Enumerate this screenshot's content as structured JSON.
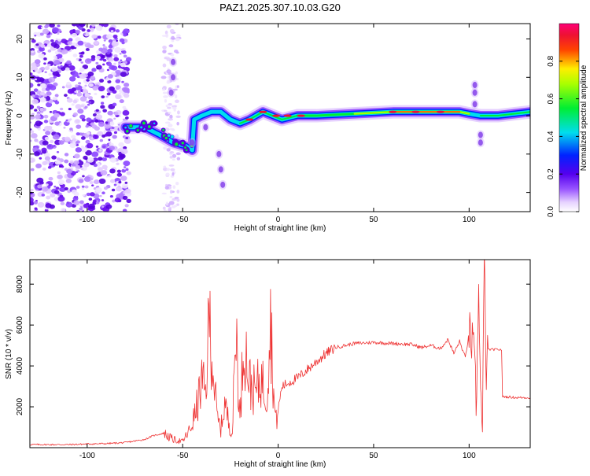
{
  "title": "PAZ1.2025.307.10.03.G20",
  "colors": {
    "snr_line": "#ee3333",
    "axis": "#000000",
    "background": "#ffffff"
  },
  "chart_data": [
    {
      "type": "heatmap",
      "title": "PAZ1.2025.307.10.03.G20",
      "xlabel": "Height of straight line (km)",
      "ylabel": "Frequency (Hz)",
      "xlim": [
        -130,
        132
      ],
      "ylim": [
        -25,
        24
      ],
      "xticks": [
        -100,
        -50,
        0,
        50,
        100
      ],
      "xtick_labels": [
        "-100",
        "-50",
        "0",
        "50",
        "100"
      ],
      "yticks": [
        -20,
        -10,
        0,
        10,
        20
      ],
      "ytick_labels": [
        "-20",
        "-10",
        "0",
        "10",
        "20"
      ],
      "colorbar": {
        "label": "Normalized spectral amplitude",
        "range": [
          0,
          1
        ],
        "ticks": [
          0.0,
          0.2,
          0.4,
          0.6,
          0.8
        ],
        "tick_labels": [
          "0.0",
          "0.2",
          "0.4",
          "0.6",
          "0.8"
        ],
        "colormap": "rainbow-white-violet-blue-cyan-green-yellow-red-magenta"
      },
      "ridge": {
        "description": "dominant frequency track vs height",
        "points": [
          {
            "x": -80,
            "y": -3
          },
          {
            "x": -70,
            "y": -3
          },
          {
            "x": -62,
            "y": -5
          },
          {
            "x": -55,
            "y": -7
          },
          {
            "x": -48,
            "y": -8
          },
          {
            "x": -45,
            "y": -9
          },
          {
            "x": -44,
            "y": -1
          },
          {
            "x": -40,
            "y": 0
          },
          {
            "x": -35,
            "y": 1
          },
          {
            "x": -30,
            "y": 1
          },
          {
            "x": -25,
            "y": -1
          },
          {
            "x": -20,
            "y": -2
          },
          {
            "x": -15,
            "y": -1
          },
          {
            "x": -8,
            "y": 1
          },
          {
            "x": -3,
            "y": 0
          },
          {
            "x": 2,
            "y": -1
          },
          {
            "x": 10,
            "y": 0
          },
          {
            "x": 20,
            "y": 0
          },
          {
            "x": 40,
            "y": 0.5
          },
          {
            "x": 60,
            "y": 1
          },
          {
            "x": 80,
            "y": 1
          },
          {
            "x": 95,
            "y": 1
          },
          {
            "x": 100,
            "y": 0.5
          },
          {
            "x": 106,
            "y": 0
          },
          {
            "x": 115,
            "y": 0
          },
          {
            "x": 132,
            "y": 1
          }
        ]
      }
    },
    {
      "type": "line",
      "xlabel": "Height of straight line (km)",
      "ylabel": "SNR (10 * v/v)",
      "xlim": [
        -130,
        132
      ],
      "ylim": [
        0,
        9200
      ],
      "xticks": [
        -100,
        -50,
        0,
        50,
        100
      ],
      "xtick_labels": [
        "-100",
        "-50",
        "0",
        "50",
        "100"
      ],
      "yticks": [
        2000,
        4000,
        6000,
        8000
      ],
      "ytick_labels": [
        "2000",
        "4000",
        "6000",
        "8000"
      ],
      "series": [
        {
          "name": "SNR",
          "points": [
            {
              "x": -130,
              "y": 150
            },
            {
              "x": -110,
              "y": 150
            },
            {
              "x": -100,
              "y": 180
            },
            {
              "x": -90,
              "y": 200
            },
            {
              "x": -80,
              "y": 250
            },
            {
              "x": -70,
              "y": 400
            },
            {
              "x": -65,
              "y": 600
            },
            {
              "x": -60,
              "y": 700
            },
            {
              "x": -55,
              "y": 400
            },
            {
              "x": -50,
              "y": 300
            },
            {
              "x": -46,
              "y": 900
            },
            {
              "x": -43,
              "y": 1800
            },
            {
              "x": -40,
              "y": 3200
            },
            {
              "x": -38,
              "y": 2600
            },
            {
              "x": -36,
              "y": 6500
            },
            {
              "x": -34,
              "y": 3800
            },
            {
              "x": -32,
              "y": 1500
            },
            {
              "x": -30,
              "y": 900
            },
            {
              "x": -28,
              "y": 2200
            },
            {
              "x": -26,
              "y": 1300
            },
            {
              "x": -24,
              "y": 700
            },
            {
              "x": -22,
              "y": 6000
            },
            {
              "x": -20,
              "y": 1200
            },
            {
              "x": -18,
              "y": 5500
            },
            {
              "x": -15,
              "y": 3200
            },
            {
              "x": -12,
              "y": 2700
            },
            {
              "x": -9,
              "y": 3400
            },
            {
              "x": -6,
              "y": 2500
            },
            {
              "x": -4,
              "y": 6400
            },
            {
              "x": -2,
              "y": 2000
            },
            {
              "x": -1,
              "y": 1300
            },
            {
              "x": 2,
              "y": 3000
            },
            {
              "x": 6,
              "y": 3200
            },
            {
              "x": 10,
              "y": 3400
            },
            {
              "x": 15,
              "y": 3800
            },
            {
              "x": 20,
              "y": 4200
            },
            {
              "x": 25,
              "y": 4600
            },
            {
              "x": 30,
              "y": 4900
            },
            {
              "x": 40,
              "y": 5100
            },
            {
              "x": 50,
              "y": 5150
            },
            {
              "x": 60,
              "y": 5100
            },
            {
              "x": 70,
              "y": 5050
            },
            {
              "x": 75,
              "y": 4900
            },
            {
              "x": 80,
              "y": 5000
            },
            {
              "x": 85,
              "y": 4850
            },
            {
              "x": 89,
              "y": 5300
            },
            {
              "x": 92,
              "y": 4600
            },
            {
              "x": 95,
              "y": 5200
            },
            {
              "x": 98,
              "y": 4400
            },
            {
              "x": 100,
              "y": 5600
            },
            {
              "x": 102,
              "y": 5000
            },
            {
              "x": 104,
              "y": 2000
            },
            {
              "x": 105,
              "y": 8500
            },
            {
              "x": 106,
              "y": 2600
            },
            {
              "x": 107,
              "y": 800
            },
            {
              "x": 108,
              "y": 9200
            },
            {
              "x": 109,
              "y": 3500
            },
            {
              "x": 110,
              "y": 4800
            },
            {
              "x": 115,
              "y": 4800
            },
            {
              "x": 117,
              "y": 4800
            },
            {
              "x": 117.5,
              "y": 2500
            },
            {
              "x": 125,
              "y": 2450
            },
            {
              "x": 132,
              "y": 2450
            }
          ]
        }
      ]
    }
  ]
}
